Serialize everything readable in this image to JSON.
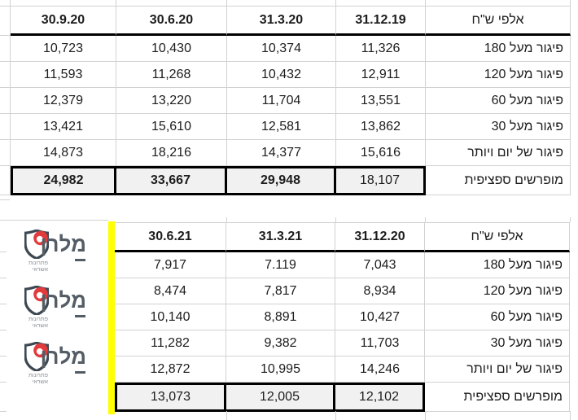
{
  "page": {
    "background": "#ffffff"
  },
  "colors": {
    "gridline": "#d2d2d2",
    "thick_border": "#000000",
    "total_row_bg": "#f1f1f1",
    "highlight_yellow": "#ffff00",
    "text": "#1c1c1c",
    "logo_red": "#e23b3b",
    "logo_slate": "#3d4852",
    "logo_text": "#545d66",
    "logo_tagline": "#8a9097"
  },
  "tables": [
    {
      "unit_header": "אלפי ש\"ח",
      "columns": [
        "30.9.20",
        "30.6.20",
        "31.3.20",
        "31.12.19"
      ],
      "rows": [
        {
          "label": "פיגור מעל 180",
          "values": [
            "10,723",
            "10,430",
            "10,374",
            "11,326"
          ]
        },
        {
          "label": "פיגור מעל 120",
          "values": [
            "11,593",
            "11,268",
            "10,432",
            "12,911"
          ]
        },
        {
          "label": "פיגור מעל 60",
          "values": [
            "12,379",
            "13,220",
            "11,704",
            "13,551"
          ]
        },
        {
          "label": "פיגור מעל 30",
          "values": [
            "13,421",
            "15,610",
            "12,581",
            "13,862"
          ]
        },
        {
          "label": "פיגור של יום ויותר",
          "values": [
            "14,873",
            "18,216",
            "14,377",
            "15,616"
          ]
        }
      ],
      "total": {
        "label": "מופרשים ספציפית",
        "values": [
          "24,982",
          "33,667",
          "29,948",
          "18,107"
        ],
        "bold": [
          true,
          true,
          true,
          false
        ]
      }
    },
    {
      "unit_header": "אלפי ש\"ח",
      "columns": [
        "30.6.21",
        "31.3.21",
        "31.12.20"
      ],
      "rows": [
        {
          "label": "פיגור מעל 180",
          "values": [
            "7,917",
            "7.119",
            "7,043"
          ]
        },
        {
          "label": "פיגור מעל 120",
          "values": [
            "8,474",
            "7,817",
            "8,934"
          ]
        },
        {
          "label": "פיגור מעל 60",
          "values": [
            "10,140",
            "8,891",
            "10,427"
          ]
        },
        {
          "label": "פיגור מעל 30",
          "values": [
            "11,282",
            "9,382",
            "11,703"
          ]
        },
        {
          "label": "פיגור של יום ויותר",
          "values": [
            "12,872",
            "10,995",
            "14,246"
          ]
        }
      ],
      "total": {
        "label": "מופרשים ספציפית",
        "values": [
          "13,073",
          "12,005",
          "12,102"
        ],
        "bold": [
          false,
          false,
          false
        ]
      }
    }
  ],
  "logo": {
    "name": "מלרן",
    "tagline": [
      "פתרונות",
      "אשראי"
    ],
    "count": 3
  }
}
